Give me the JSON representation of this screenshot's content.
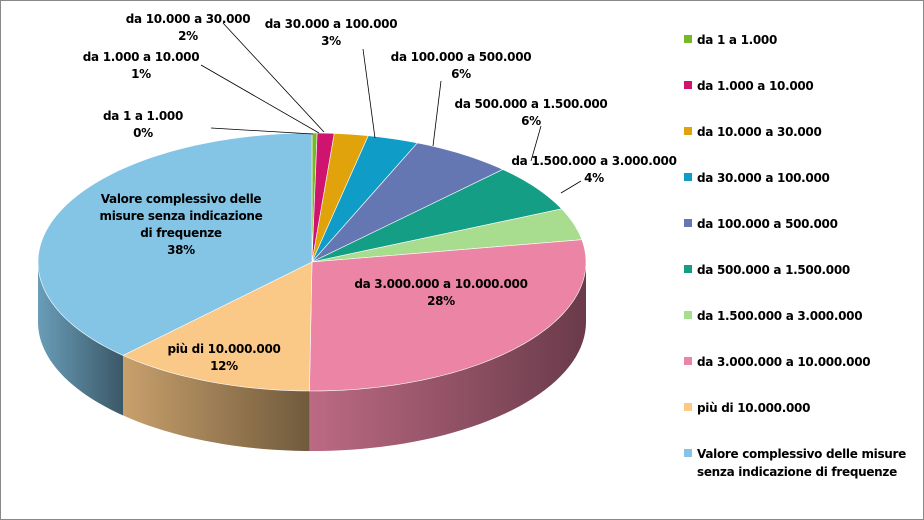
{
  "chart_data": {
    "type": "pie",
    "style": "3d",
    "categories": [
      "da 1 a 1.000",
      "da 1.000 a 10.000",
      "da 10.000 a 30.000",
      "da 30.000 a 100.000",
      "da 100.000 a 500.000",
      "da 500.000 a 1.500.000",
      "da 1.500.000 a 3.000.000",
      "da 3.000.000 a 10.000.000",
      "più di 10.000.000",
      "Valore complessivo delle misure senza indicazione di frequenze"
    ],
    "values": [
      0.3,
      1,
      2,
      3,
      6,
      6,
      4,
      28,
      12,
      38
    ],
    "data_labels": [
      "0%",
      "1%",
      "2%",
      "3%",
      "6%",
      "6%",
      "4%",
      "28%",
      "12%",
      "38%"
    ],
    "label_text": [
      "da 1 a 1.000",
      "da 1.000 a 10.000",
      "da 10.000 a 30.000",
      "da 30.000 a 100.000",
      "da 100.000 a 500.000",
      "da 500.000 a 1.500.000",
      "da 1.500.000 a 3.000.000",
      "da 3.000.000 a 10.000.000",
      "più di 10.000.000",
      "Valore complessivo delle\nmisure senza indicazione\ndi frequenze"
    ],
    "colors": [
      "#76b82a",
      "#cf1470",
      "#e0a30c",
      "#0f9cc6",
      "#6577b3",
      "#159e86",
      "#a8dc8f",
      "#ec85a5",
      "#fbc987",
      "#84c5e6"
    ],
    "legend_labels": [
      "da 1 a 1.000",
      "da 1.000 a 10.000",
      "da 10.000 a 30.000",
      "da 30.000 a 100.000",
      "da 100.000 a 500.000",
      "da 500.000 a 1.500.000",
      "da 1.500.000 a 3.000.000",
      "da 3.000.000 a 10.000.000",
      "più di 10.000.000",
      "Valore complessivo delle misure\nsenza indicazione di frequenze"
    ],
    "legend_placement": "right"
  }
}
